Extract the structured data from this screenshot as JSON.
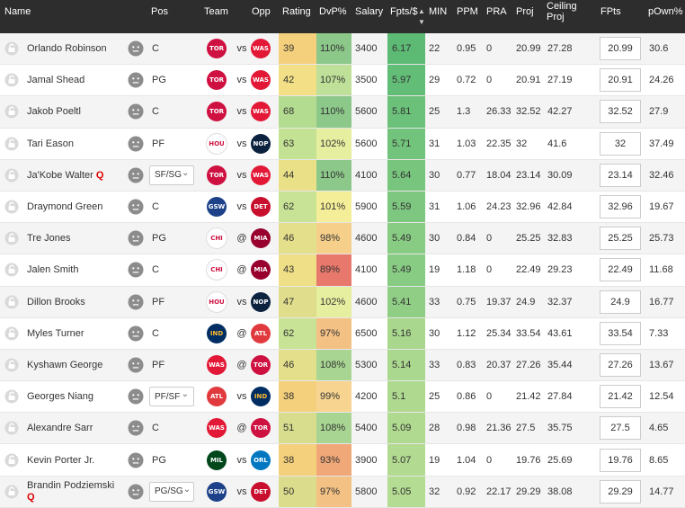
{
  "header": {
    "name": "Name",
    "pos": "Pos",
    "team": "Team",
    "opp": "Opp",
    "rating": "Rating",
    "dvp": "DvP%",
    "salary": "Salary",
    "fpts_per": "Fpts/$",
    "sort_icon": "sort-arrows-icon",
    "min": "MIN",
    "ppm": "PPM",
    "pra": "PRA",
    "proj": "Proj",
    "ceiling_line1": "Ceiling",
    "ceiling_line2": "Proj",
    "fpts": "FPts",
    "pown": "pOwn%"
  },
  "rows": [
    {
      "name": "Orlando Robinson",
      "q": "",
      "pos": "C",
      "team": "TOR",
      "at": "vs",
      "opp": "WAS",
      "rating": "39",
      "dvp": "110%",
      "salary": "3400",
      "fpts_per": "6.17",
      "min": "22",
      "ppm": "0.95",
      "pra": "0",
      "proj": "20.99",
      "ceil": "27.28",
      "fpts": "20.99",
      "pown": "30.6",
      "rating_color": "#f5d07c",
      "dvp_color": "#8cc88a",
      "fpts_color": "#5cba75"
    },
    {
      "name": "Jamal Shead",
      "q": "",
      "pos": "PG",
      "team": "TOR",
      "at": "vs",
      "opp": "WAS",
      "rating": "42",
      "dvp": "107%",
      "salary": "3500",
      "fpts_per": "5.97",
      "min": "29",
      "ppm": "0.72",
      "pra": "0",
      "proj": "20.91",
      "ceil": "27.19",
      "fpts": "20.91",
      "pown": "24.26",
      "rating_color": "#f2df86",
      "dvp_color": "#bee098",
      "fpts_color": "#62bd77"
    },
    {
      "name": "Jakob Poeltl",
      "q": "",
      "pos": "C",
      "team": "TOR",
      "at": "vs",
      "opp": "WAS",
      "rating": "68",
      "dvp": "110%",
      "salary": "5600",
      "fpts_per": "5.81",
      "min": "25",
      "ppm": "1.3",
      "pra": "26.33",
      "proj": "32.52",
      "ceil": "42.27",
      "fpts": "32.52",
      "pown": "27.9",
      "rating_color": "#b4dc90",
      "dvp_color": "#8cc88a",
      "fpts_color": "#6cc17a"
    },
    {
      "name": "Tari Eason",
      "q": "",
      "pos": "PF",
      "team": "HOU",
      "at": "vs",
      "opp": "NOP",
      "rating": "63",
      "dvp": "102%",
      "salary": "5600",
      "fpts_per": "5.71",
      "min": "31",
      "ppm": "1.03",
      "pra": "22.35",
      "proj": "32",
      "ceil": "41.6",
      "fpts": "32",
      "pown": "37.49",
      "rating_color": "#c4e294",
      "dvp_color": "#e6eea0",
      "fpts_color": "#72c37b"
    },
    {
      "name": "Ja'Kobe Walter",
      "q": "Q",
      "pos": "SF/SG",
      "team": "TOR",
      "at": "vs",
      "opp": "WAS",
      "rating": "44",
      "dvp": "110%",
      "salary": "4100",
      "fpts_per": "5.64",
      "min": "30",
      "ppm": "0.77",
      "pra": "18.04",
      "proj": "23.14",
      "ceil": "30.09",
      "fpts": "23.14",
      "pown": "32.46",
      "rating_color": "#eae088",
      "dvp_color": "#8cc88a",
      "fpts_color": "#78c57d"
    },
    {
      "name": "Draymond Green",
      "q": "",
      "pos": "C",
      "team": "GSW",
      "at": "vs",
      "opp": "DET",
      "rating": "62",
      "dvp": "101%",
      "salary": "5900",
      "fpts_per": "5.59",
      "min": "31",
      "ppm": "1.06",
      "pra": "24.23",
      "proj": "32.96",
      "ceil": "42.84",
      "fpts": "32.96",
      "pown": "19.67",
      "rating_color": "#c8e396",
      "dvp_color": "#f5ee98",
      "fpts_color": "#7ec780"
    },
    {
      "name": "Tre Jones",
      "q": "",
      "pos": "PG",
      "team": "CHI",
      "at": "@",
      "opp": "MIA",
      "rating": "46",
      "dvp": "98%",
      "salary": "4600",
      "fpts_per": "5.49",
      "min": "30",
      "ppm": "0.84",
      "pra": "0",
      "proj": "25.25",
      "ceil": "32.83",
      "fpts": "25.25",
      "pown": "25.73",
      "rating_color": "#e4df8a",
      "dvp_color": "#f6cf8a",
      "fpts_color": "#88cb83"
    },
    {
      "name": "Jalen Smith",
      "q": "",
      "pos": "C",
      "team": "CHI",
      "at": "@",
      "opp": "MIA",
      "rating": "43",
      "dvp": "89%",
      "salary": "4100",
      "fpts_per": "5.49",
      "min": "19",
      "ppm": "1.18",
      "pra": "0",
      "proj": "22.49",
      "ceil": "29.23",
      "fpts": "22.49",
      "pown": "11.68",
      "rating_color": "#efdf86",
      "dvp_color": "#e8786c",
      "fpts_color": "#88cb83"
    },
    {
      "name": "Dillon Brooks",
      "q": "",
      "pos": "PF",
      "team": "HOU",
      "at": "vs",
      "opp": "NOP",
      "rating": "47",
      "dvp": "102%",
      "salary": "4600",
      "fpts_per": "5.41",
      "min": "33",
      "ppm": "0.75",
      "pra": "19.37",
      "proj": "24.9",
      "ceil": "32.37",
      "fpts": "24.9",
      "pown": "16.77",
      "rating_color": "#e0de8c",
      "dvp_color": "#e6eea0",
      "fpts_color": "#90ce86"
    },
    {
      "name": "Myles Turner",
      "q": "",
      "pos": "C",
      "team": "IND",
      "at": "@",
      "opp": "ATL",
      "rating": "62",
      "dvp": "97%",
      "salary": "6500",
      "fpts_per": "5.16",
      "min": "30",
      "ppm": "1.12",
      "pra": "25.34",
      "proj": "33.54",
      "ceil": "43.61",
      "fpts": "33.54",
      "pown": "7.33",
      "rating_color": "#c8e396",
      "dvp_color": "#f4c184",
      "fpts_color": "#a8d78d"
    },
    {
      "name": "Kyshawn George",
      "q": "",
      "pos": "PF",
      "team": "WAS",
      "at": "@",
      "opp": "TOR",
      "rating": "46",
      "dvp": "108%",
      "salary": "5300",
      "fpts_per": "5.14",
      "min": "33",
      "ppm": "0.83",
      "pra": "20.37",
      "proj": "27.26",
      "ceil": "35.44",
      "fpts": "27.26",
      "pown": "13.67",
      "rating_color": "#e4df8a",
      "dvp_color": "#a8d592",
      "fpts_color": "#aad88e"
    },
    {
      "name": "Georges Niang",
      "q": "",
      "pos": "PF/SF",
      "team": "ATL",
      "at": "vs",
      "opp": "IND",
      "rating": "38",
      "dvp": "99%",
      "salary": "4200",
      "fpts_per": "5.1",
      "min": "25",
      "ppm": "0.86",
      "pra": "0",
      "proj": "21.42",
      "ceil": "27.84",
      "fpts": "21.42",
      "pown": "12.54",
      "rating_color": "#f5d07c",
      "dvp_color": "#f7d590",
      "fpts_color": "#aed98f"
    },
    {
      "name": "Alexandre Sarr",
      "q": "",
      "pos": "C",
      "team": "WAS",
      "at": "@",
      "opp": "TOR",
      "rating": "51",
      "dvp": "108%",
      "salary": "5400",
      "fpts_per": "5.09",
      "min": "28",
      "ppm": "0.98",
      "pra": "21.36",
      "proj": "27.5",
      "ceil": "35.75",
      "fpts": "27.5",
      "pown": "4.65",
      "rating_color": "#d8dd8e",
      "dvp_color": "#a8d592",
      "fpts_color": "#b0da90"
    },
    {
      "name": "Kevin Porter Jr.",
      "q": "",
      "pos": "PG",
      "team": "MIL",
      "at": "vs",
      "opp": "ORL",
      "rating": "38",
      "dvp": "93%",
      "salary": "3900",
      "fpts_per": "5.07",
      "min": "19",
      "ppm": "1.04",
      "pra": "0",
      "proj": "19.76",
      "ceil": "25.69",
      "fpts": "19.76",
      "pown": "8.65",
      "rating_color": "#f5d07c",
      "dvp_color": "#f0a878",
      "fpts_color": "#b2db91"
    },
    {
      "name": "Brandin Podziemski",
      "q": "Q",
      "pos": "PG/SG",
      "team": "GSW",
      "at": "vs",
      "opp": "DET",
      "rating": "50",
      "dvp": "97%",
      "salary": "5800",
      "fpts_per": "5.05",
      "min": "32",
      "ppm": "0.92",
      "pra": "22.17",
      "proj": "29.29",
      "ceil": "38.08",
      "fpts": "29.29",
      "pown": "14.77",
      "rating_color": "#dcdd8c",
      "dvp_color": "#f4c184",
      "fpts_color": "#b4dc92"
    }
  ],
  "teams": {
    "TOR": {
      "bg": "#ce1141",
      "abbr": "TOR"
    },
    "WAS": {
      "bg": "#e31837",
      "abbr": "WAS"
    },
    "HOU": {
      "bg": "#ffffff",
      "abbr": "HOU",
      "fg": "#ce1141"
    },
    "NOP": {
      "bg": "#0c2340",
      "abbr": "NOP"
    },
    "GSW": {
      "bg": "#1d428a",
      "abbr": "GSW"
    },
    "DET": {
      "bg": "#c8102e",
      "abbr": "DET"
    },
    "CHI": {
      "bg": "#ffffff",
      "abbr": "CHI",
      "fg": "#ce1141"
    },
    "MIA": {
      "bg": "#98002e",
      "abbr": "MIA"
    },
    "IND": {
      "bg": "#002d62",
      "abbr": "IND",
      "fg": "#fdbb30"
    },
    "ATL": {
      "bg": "#e03a3e",
      "abbr": "ATL"
    },
    "MIL": {
      "bg": "#00471b",
      "abbr": "MIL"
    },
    "ORL": {
      "bg": "#0077c0",
      "abbr": "ORL"
    }
  }
}
